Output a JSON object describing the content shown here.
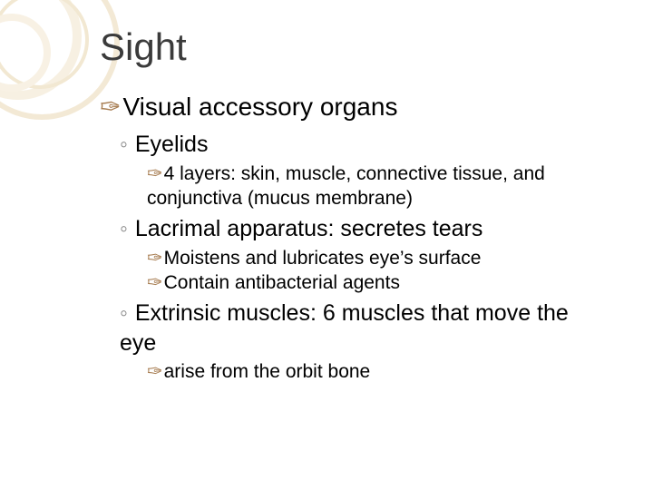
{
  "colors": {
    "background": "#ffffff",
    "title_text": "#3b3b3b",
    "body_text": "#000000",
    "bullet_primary": "#a67b4f",
    "bullet_secondary": "#888888",
    "deco_ring_light": "#f7f0e2",
    "deco_ring_mid": "#f3e9d5"
  },
  "typography": {
    "title_fontsize": 42,
    "lvl1_fontsize": 28,
    "lvl2_fontsize": 25,
    "lvl3_fontsize": 21,
    "font_family": "Arial"
  },
  "bullets": {
    "lvl1_glyph": "✑",
    "lvl2_glyph": "◦",
    "lvl3_glyph": "✑"
  },
  "title": "Sight",
  "lvl1_heading": "Visual accessory organs",
  "sections": [
    {
      "heading": "Eyelids",
      "items": [
        "4 layers: skin, muscle, connective tissue, and conjunctiva (mucus membrane)"
      ]
    },
    {
      "heading": "Lacrimal apparatus: secretes tears",
      "items": [
        "Moistens and lubricates eye’s surface",
        "Contain antibacterial agents"
      ]
    },
    {
      "heading": "Extrinsic muscles: 6 muscles that move the eye",
      "items": [
        "arise from the orbit bone"
      ]
    }
  ]
}
